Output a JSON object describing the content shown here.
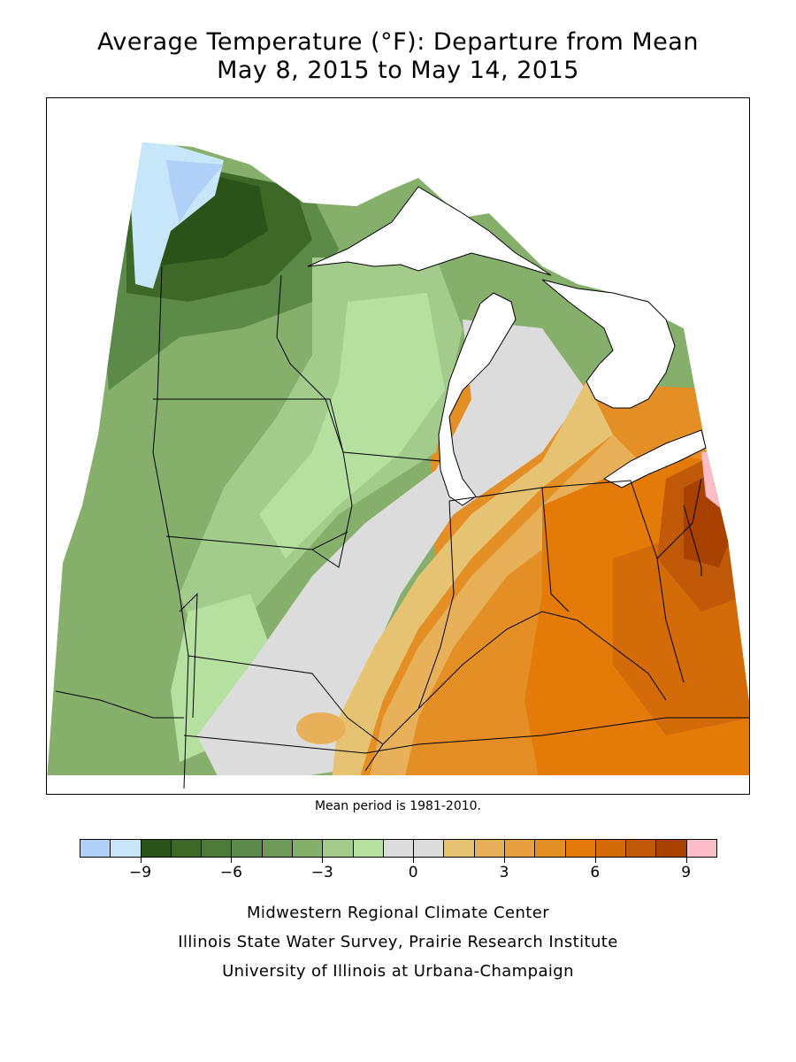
{
  "header": {
    "title_line1": "Average Temperature (°F): Departure from Mean",
    "title_line2": "May 8, 2015 to May 14, 2015"
  },
  "map": {
    "note": "Mean period is 1981-2010."
  },
  "legend": {
    "colors": [
      "#b0d0f8",
      "#c8e6fa",
      "#2b5219",
      "#3d6828",
      "#4d7a38",
      "#5c8a48",
      "#6f9a59",
      "#86af6c",
      "#a3cc8c",
      "#b6e0a0",
      "#dcdcdc",
      "#dcdcdc",
      "#e6c373",
      "#e8b159",
      "#e8a03f",
      "#e48e26",
      "#e47b08",
      "#d26b08",
      "#c15a08",
      "#a84000",
      "#fcbdc9"
    ],
    "tick_values": [
      "-9",
      "-6",
      "-3",
      "0",
      "3",
      "6",
      "9"
    ]
  },
  "footer": {
    "line1": "Midwestern Regional Climate Center",
    "line2": "Illinois State Water Survey, Prairie Research Institute",
    "line3": "University of Illinois at Urbana-Champaign"
  }
}
